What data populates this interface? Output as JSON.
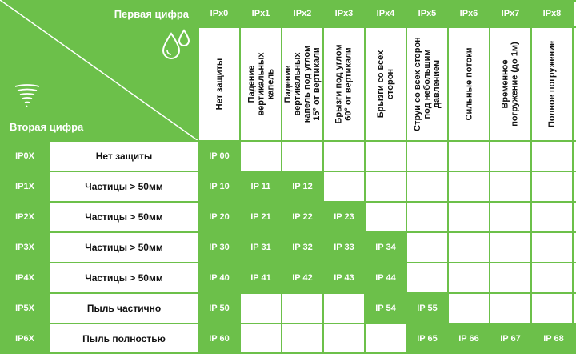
{
  "colors": {
    "green": "#6cc04a",
    "white": "#ffffff",
    "text": "#111111"
  },
  "corner": {
    "first_digit_label": "Первая цифра",
    "second_digit_label": "Вторая цифра",
    "water_icon": "water-drops-icon",
    "dust_icon": "tornado-icon"
  },
  "columns": [
    {
      "code": "IPx0",
      "desc": "Нет защиты"
    },
    {
      "code": "IPx1",
      "desc": "Падение\nвертикальных\nкапель"
    },
    {
      "code": "IPx2",
      "desc": "Падение\nвертикальных\nкапель под углом\n15° от вертикали"
    },
    {
      "code": "IPx3",
      "desc": "Брызги под углом\n60° от вертикали"
    },
    {
      "code": "IPx4",
      "desc": "Брызги со всех\nсторон"
    },
    {
      "code": "IPx5",
      "desc": "Струи со всех сторон\nпод небольшим\nдавлением"
    },
    {
      "code": "IPx6",
      "desc": "Сильные потоки"
    },
    {
      "code": "IPx7",
      "desc": "Временное\nпогружение (до 1м)"
    },
    {
      "code": "IPx8",
      "desc": "Полное погружение"
    }
  ],
  "rows": [
    {
      "code": "IP0X",
      "label": "Нет защиты",
      "cells": [
        "IP 00",
        "",
        "",
        "",
        "",
        "",
        "",
        "",
        ""
      ]
    },
    {
      "code": "IP1X",
      "label": "Частицы > 50мм",
      "cells": [
        "IP 10",
        "IP 11",
        "IP 12",
        "",
        "",
        "",
        "",
        "",
        ""
      ]
    },
    {
      "code": "IP2X",
      "label": "Частицы > 50мм",
      "cells": [
        "IP 20",
        "IP 21",
        "IP 22",
        "IP 23",
        "",
        "",
        "",
        "",
        ""
      ]
    },
    {
      "code": "IP3X",
      "label": "Частицы > 50мм",
      "cells": [
        "IP 30",
        "IP 31",
        "IP 32",
        "IP 33",
        "IP 34",
        "",
        "",
        "",
        ""
      ]
    },
    {
      "code": "IP4X",
      "label": "Частицы > 50мм",
      "cells": [
        "IP 40",
        "IP 41",
        "IP 42",
        "IP 43",
        "IP 44",
        "",
        "",
        "",
        ""
      ]
    },
    {
      "code": "IP5X",
      "label": "Пыль частично",
      "cells": [
        "IP 50",
        "",
        "",
        "",
        "IP 54",
        "IP 55",
        "",
        "",
        ""
      ]
    },
    {
      "code": "IP6X",
      "label": "Пыль полностью",
      "cells": [
        "IP 60",
        "",
        "",
        "",
        "",
        "IP 65",
        "IP 66",
        "IP 67",
        "IP 68"
      ]
    }
  ]
}
